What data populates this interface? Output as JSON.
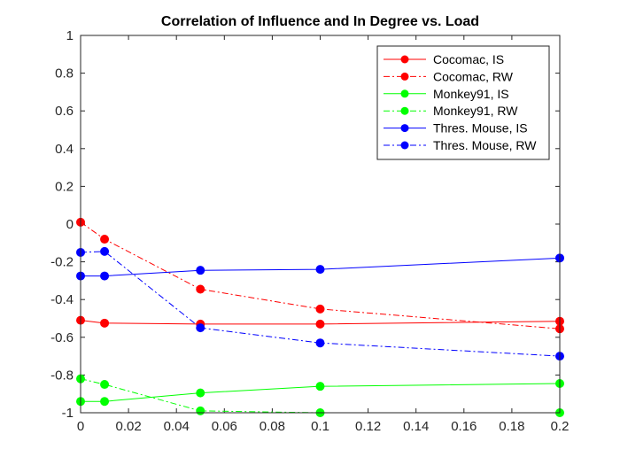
{
  "chart_data": {
    "type": "line",
    "title": "Correlation of Influence and In Degree vs. Load",
    "xlabel": "",
    "ylabel": "",
    "xlim": [
      0,
      0.2
    ],
    "ylim": [
      -1,
      1
    ],
    "x": [
      0,
      0.01,
      0.05,
      0.1,
      0.2
    ],
    "x_ticks": [
      "0",
      "0.02",
      "0.04",
      "0.06",
      "0.08",
      "0.1",
      "0.12",
      "0.14",
      "0.16",
      "0.18",
      "0.2"
    ],
    "y_ticks": [
      "1",
      "0.8",
      "0.6",
      "0.4",
      "0.2",
      "0",
      "-0.2",
      "-0.4",
      "-0.6",
      "-0.8",
      "-1"
    ],
    "grid": false,
    "legend_position": "top-right",
    "series": [
      {
        "name": "Cocomac, IS",
        "color": "#ff0000",
        "line_style": "solid",
        "values": [
          -0.51,
          -0.525,
          -0.53,
          -0.53,
          -0.515
        ]
      },
      {
        "name": "Cocomac, RW",
        "color": "#ff0000",
        "line_style": "dash-dot",
        "values": [
          0.01,
          -0.08,
          -0.345,
          -0.45,
          -0.555
        ]
      },
      {
        "name": "Monkey91, IS",
        "color": "#00ff00",
        "line_style": "solid",
        "values": [
          -0.94,
          -0.94,
          -0.895,
          -0.86,
          -0.845
        ]
      },
      {
        "name": "Monkey91, RW",
        "color": "#00ff00",
        "line_style": "dash-dot",
        "values": [
          -0.82,
          -0.85,
          -0.99,
          -1.0,
          -1.0
        ]
      },
      {
        "name": "Thres. Mouse, IS",
        "color": "#0000ff",
        "line_style": "solid",
        "values": [
          -0.275,
          -0.275,
          -0.245,
          -0.24,
          -0.18
        ]
      },
      {
        "name": "Thres. Mouse, RW",
        "color": "#0000ff",
        "line_style": "dash-dot",
        "values": [
          -0.15,
          -0.145,
          -0.55,
          -0.63,
          -0.7
        ]
      }
    ]
  }
}
